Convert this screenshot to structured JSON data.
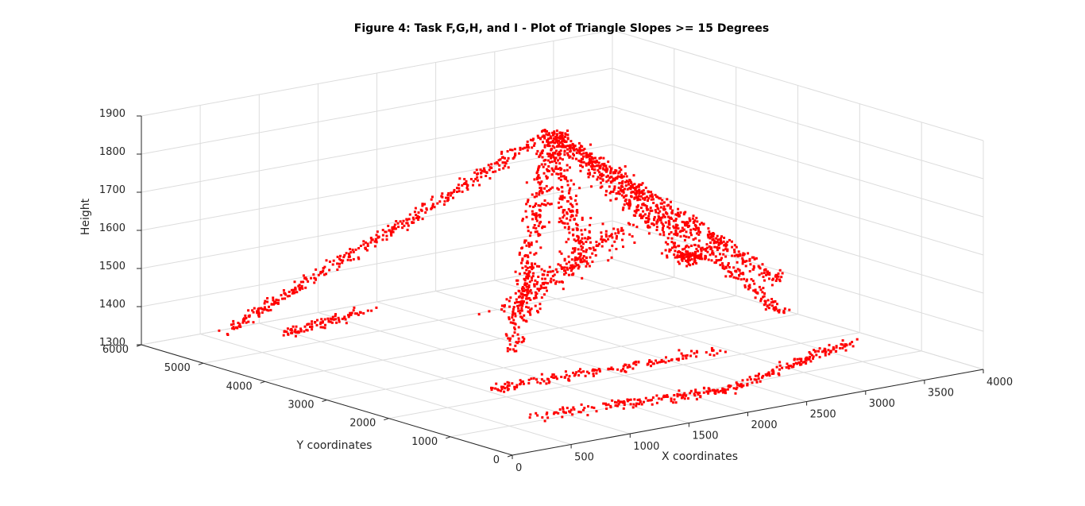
{
  "chart_data": {
    "type": "scatter",
    "title": "Figure 4: Task F,G,H, and I - Plot of Triangle Slopes >= 15 Degrees",
    "xlabel": "X coordinates",
    "ylabel": "Y coordinates",
    "zlabel": "Height",
    "xlim": [
      0,
      4000
    ],
    "ylim": [
      0,
      6000
    ],
    "zlim": [
      1300,
      1900
    ],
    "xticks": [
      0,
      500,
      1000,
      1500,
      2000,
      2500,
      3000,
      3500,
      4000
    ],
    "yticks": [
      0,
      1000,
      2000,
      3000,
      4000,
      5000,
      6000
    ],
    "zticks": [
      1300,
      1400,
      1500,
      1600,
      1700,
      1800,
      1900
    ],
    "grid": true,
    "marker_color": "#ff0000",
    "marker": "square",
    "ridges": [
      {
        "x0": 2000,
        "y0": 3200,
        "z0": 1880,
        "x1": 150,
        "y1": 4900,
        "z1": 1380,
        "n": 380,
        "jitter": 110
      },
      {
        "x0": 2000,
        "y0": 3200,
        "z0": 1880,
        "x1": 3950,
        "y1": 3200,
        "z1": 1380,
        "n": 380,
        "jitter": 120
      },
      {
        "x0": 2050,
        "y0": 3100,
        "z0": 1870,
        "x1": 3000,
        "y1": 1300,
        "z1": 1440,
        "n": 320,
        "jitter": 110
      },
      {
        "x0": 1950,
        "y0": 3150,
        "z0": 1860,
        "x1": 800,
        "y1": 1500,
        "z1": 1460,
        "n": 280,
        "jitter": 120
      },
      {
        "x0": 2000,
        "y0": 3200,
        "z0": 1880,
        "x1": 1600,
        "y1": 1900,
        "z1": 1620,
        "n": 220,
        "jitter": 140
      },
      {
        "x0": 2050,
        "y0": 3250,
        "z0": 1860,
        "x1": 2550,
        "y1": 2000,
        "z1": 1590,
        "n": 200,
        "jitter": 140
      },
      {
        "x0": 600,
        "y0": 800,
        "z0": 1330,
        "x1": 2100,
        "y1": 500,
        "z1": 1330,
        "n": 160,
        "jitter": 90
      },
      {
        "x0": 2100,
        "y0": 500,
        "z0": 1330,
        "x1": 3500,
        "y1": 1200,
        "z1": 1340,
        "n": 140,
        "jitter": 90
      },
      {
        "x0": 700,
        "y0": 1700,
        "z0": 1350,
        "x1": 2600,
        "y1": 1500,
        "z1": 1360,
        "n": 160,
        "jitter": 120
      },
      {
        "x0": 300,
        "y0": 4300,
        "z0": 1390,
        "x1": 900,
        "y1": 4100,
        "z1": 1430,
        "n": 90,
        "jitter": 150
      },
      {
        "x0": 3300,
        "y0": 3700,
        "z0": 1470,
        "x1": 3800,
        "y1": 4200,
        "z1": 1390,
        "n": 90,
        "jitter": 150
      },
      {
        "x0": 1200,
        "y0": 2300,
        "z0": 1500,
        "x1": 2300,
        "y1": 2600,
        "z1": 1650,
        "n": 220,
        "jitter": 320
      }
    ]
  }
}
